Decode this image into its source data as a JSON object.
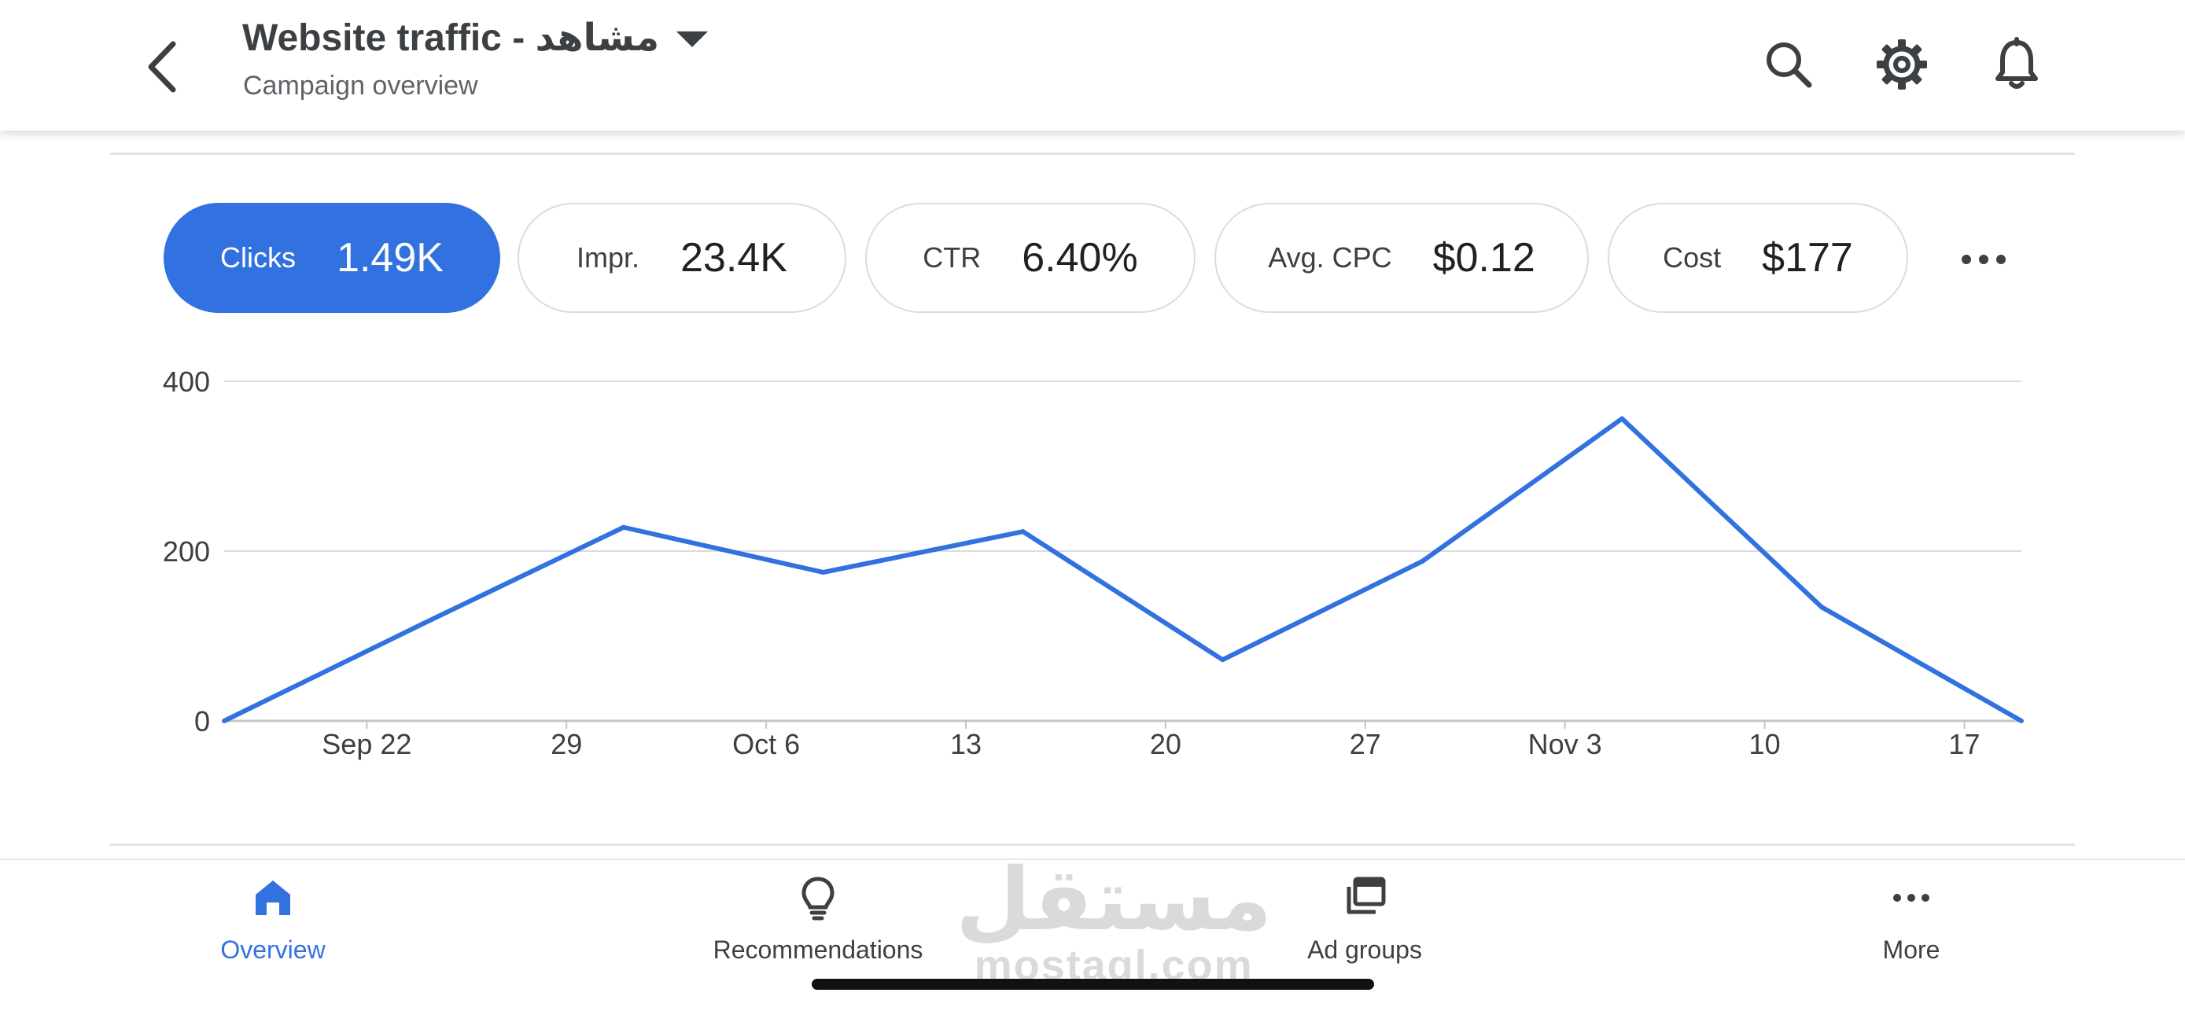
{
  "header": {
    "title": "Website traffic - مشاهد",
    "subtitle": "Campaign overview",
    "icons": [
      "back-icon",
      "caret-down-icon",
      "search-icon",
      "gear-icon",
      "bell-icon"
    ]
  },
  "metrics": [
    {
      "label": "Clicks",
      "value": "1.49K",
      "active": true
    },
    {
      "label": "Impr.",
      "value": "23.4K",
      "active": false
    },
    {
      "label": "CTR",
      "value": "6.40%",
      "active": false
    },
    {
      "label": "Avg. CPC",
      "value": "$0.12",
      "active": false
    },
    {
      "label": "Cost",
      "value": "$177",
      "active": false
    }
  ],
  "colors": {
    "accent": "#3271e0",
    "line": "#3271e0",
    "grid": "#dadce0"
  },
  "chart_data": {
    "type": "line",
    "x_ticks": [
      "Sep 22",
      "29",
      "Oct 6",
      "13",
      "20",
      "27",
      "Nov 3",
      "10",
      "17"
    ],
    "x": [
      "Sep 17",
      "Sep 24",
      "Oct 1",
      "Oct 8",
      "Oct 15",
      "Oct 22",
      "Oct 29",
      "Nov 5",
      "Nov 12",
      "Nov 19"
    ],
    "series": [
      {
        "values": [
          0,
          115,
          228,
          175,
          223,
          72,
          188,
          356,
          134,
          0
        ]
      }
    ],
    "y_ticks": [
      "400",
      "200",
      "0"
    ],
    "ylim": [
      0,
      400
    ],
    "grid": true
  },
  "nav": {
    "items": [
      {
        "label": "Overview",
        "icon": "home-icon",
        "active": true
      },
      {
        "label": "Recommendations",
        "icon": "lightbulb-icon",
        "active": false
      },
      {
        "label": "Ad groups",
        "icon": "ad-groups-icon",
        "active": false
      },
      {
        "label": "More",
        "icon": "more-dots-icon",
        "active": false
      }
    ]
  },
  "watermark": {
    "arabic": "مستقل",
    "latin": "mostaql.com"
  }
}
